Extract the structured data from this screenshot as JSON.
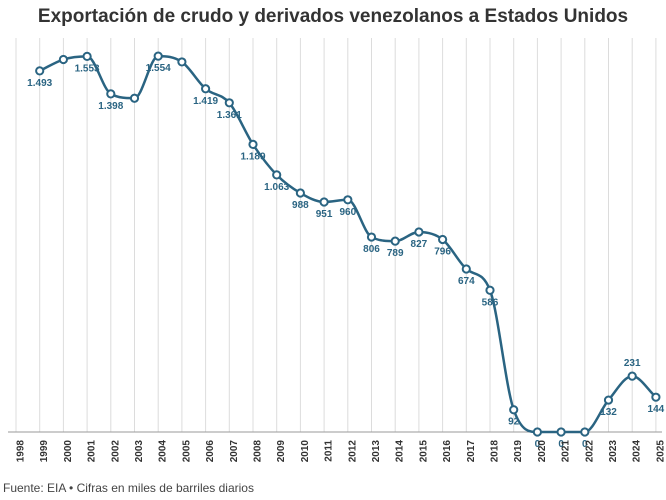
{
  "title": "Exportación de crudo y derivados venezolanos a Estados Unidos",
  "source": "Fuente: EIA • Cifras en miles de barriles diarios",
  "chart_data": {
    "type": "line",
    "title": "Exportación de crudo y derivados venezolanos a Estados Unidos",
    "xlabel": "",
    "ylabel": "",
    "categories": [
      "1998",
      "1999",
      "2000",
      "2001",
      "2002",
      "2003",
      "2004",
      "2005",
      "2006",
      "2007",
      "2008",
      "2009",
      "2010",
      "2011",
      "2012",
      "2013",
      "2014",
      "2015",
      "2016",
      "2017",
      "2018",
      "2019",
      "2020",
      "2021",
      "2022",
      "2023",
      "2024",
      "2025"
    ],
    "values": [
      null,
      1493,
      1540,
      1553,
      1398,
      1380,
      1554,
      1530,
      1419,
      1361,
      1189,
      1063,
      988,
      951,
      960,
      806,
      789,
      827,
      796,
      674,
      586,
      92,
      0,
      0,
      0,
      132,
      231,
      144
    ],
    "data_labels": [
      null,
      "1.493",
      null,
      "1.553",
      "1.398",
      null,
      "1.554",
      null,
      "1.419",
      "1.361",
      "1.189",
      "1.063",
      "988",
      "951",
      "960",
      "806",
      "789",
      "827",
      "796",
      "674",
      "586",
      "92",
      "0",
      "0",
      "0",
      "132",
      "231",
      "144"
    ],
    "ylim": [
      0,
      1600
    ],
    "grid": "vertical",
    "color": "#2a6482"
  }
}
